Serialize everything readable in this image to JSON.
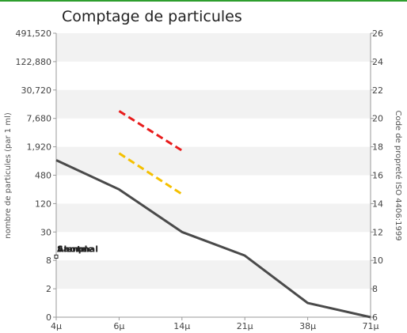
{
  "chart_data": {
    "type": "line",
    "title": "Comptage de particules",
    "ylabel_left": "nombre de particules (par 1 ml)",
    "ylabel_right": "Code de propreté ISO 4406:1999",
    "x_categories": [
      "4μ",
      "6μ",
      "14μ",
      "21μ",
      "38μ",
      "71μ"
    ],
    "y_left_scale": "log2",
    "y_left_ticks": [
      "0",
      "2",
      "8",
      "30",
      "120",
      "480",
      "1,920",
      "7,680",
      "30,720",
      "122,880",
      "491,520"
    ],
    "y_left_tick_values": [
      0.5,
      2,
      8,
      30,
      120,
      480,
      1920,
      7680,
      30720,
      122880,
      491520
    ],
    "y_right_ticks": [
      "6",
      "8",
      "10",
      "12",
      "14",
      "16",
      "18",
      "20",
      "22",
      "24",
      "26"
    ],
    "y_right_range": [
      6,
      26
    ],
    "grid_bands": true,
    "legend_items": [
      "Alerte",
      "Anormal",
      "Sample"
    ],
    "series": [
      {
        "name": "Sample",
        "color": "#4a4a4a",
        "style": "solid",
        "points": [
          {
            "x": "4μ",
            "y": 1000
          },
          {
            "x": "6μ",
            "y": 240
          },
          {
            "x": "14μ",
            "y": 30
          },
          {
            "x": "21μ",
            "y": 10
          },
          {
            "x": "38μ",
            "y": 1
          },
          {
            "x": "71μ",
            "y": 0.5
          }
        ]
      },
      {
        "name": "Anormal",
        "color": "#e81c1c",
        "style": "dashed",
        "points": [
          {
            "x": "6μ",
            "y": 11000
          },
          {
            "x": "14μ",
            "y": 1600
          }
        ]
      },
      {
        "name": "Alerte",
        "color": "#f5c000",
        "style": "dashed",
        "points": [
          {
            "x": "6μ",
            "y": 1400
          },
          {
            "x": "14μ",
            "y": 190
          }
        ]
      }
    ]
  }
}
